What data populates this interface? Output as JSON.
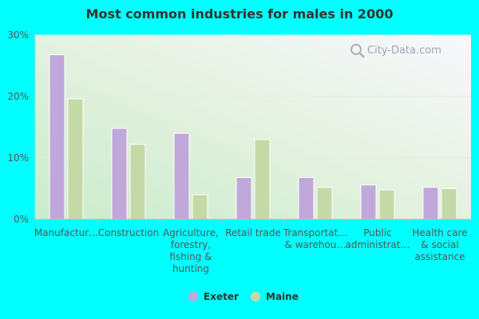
{
  "chart_data": {
    "type": "bar",
    "title": "Most common industries for males in 2000",
    "categories": [
      "Manufactur…",
      "Construction",
      "Agriculture, forestry, fishing & hunting",
      "Retail trade",
      "Transportat… & warehou…",
      "Public administrat…",
      "Health care & social assistance"
    ],
    "category_lines": [
      [
        "Manufactur…"
      ],
      [
        "Construction"
      ],
      [
        "Agriculture,",
        "forestry,",
        "fishing &",
        "hunting"
      ],
      [
        "Retail trade"
      ],
      [
        "Transportat…",
        "& warehou…"
      ],
      [
        "Public",
        "administrat…"
      ],
      [
        "Health care",
        "& social",
        "assistance"
      ]
    ],
    "series": [
      {
        "name": "Exeter",
        "color": "#c0a8da",
        "values": [
          26.8,
          14.8,
          14.0,
          6.8,
          6.8,
          5.6,
          5.2
        ]
      },
      {
        "name": "Maine",
        "color": "#c5d9a6",
        "values": [
          19.6,
          12.2,
          4.0,
          13.0,
          5.2,
          4.8,
          5.0
        ]
      }
    ],
    "ylim": [
      0,
      30
    ],
    "yticks": [
      0,
      10,
      20,
      30
    ],
    "ytick_labels": [
      "0%",
      "10%",
      "20%",
      "30%"
    ],
    "xlabel": "",
    "ylabel": "",
    "grid": true,
    "legend_position": "bottom-center"
  },
  "watermark": "City-Data.com"
}
